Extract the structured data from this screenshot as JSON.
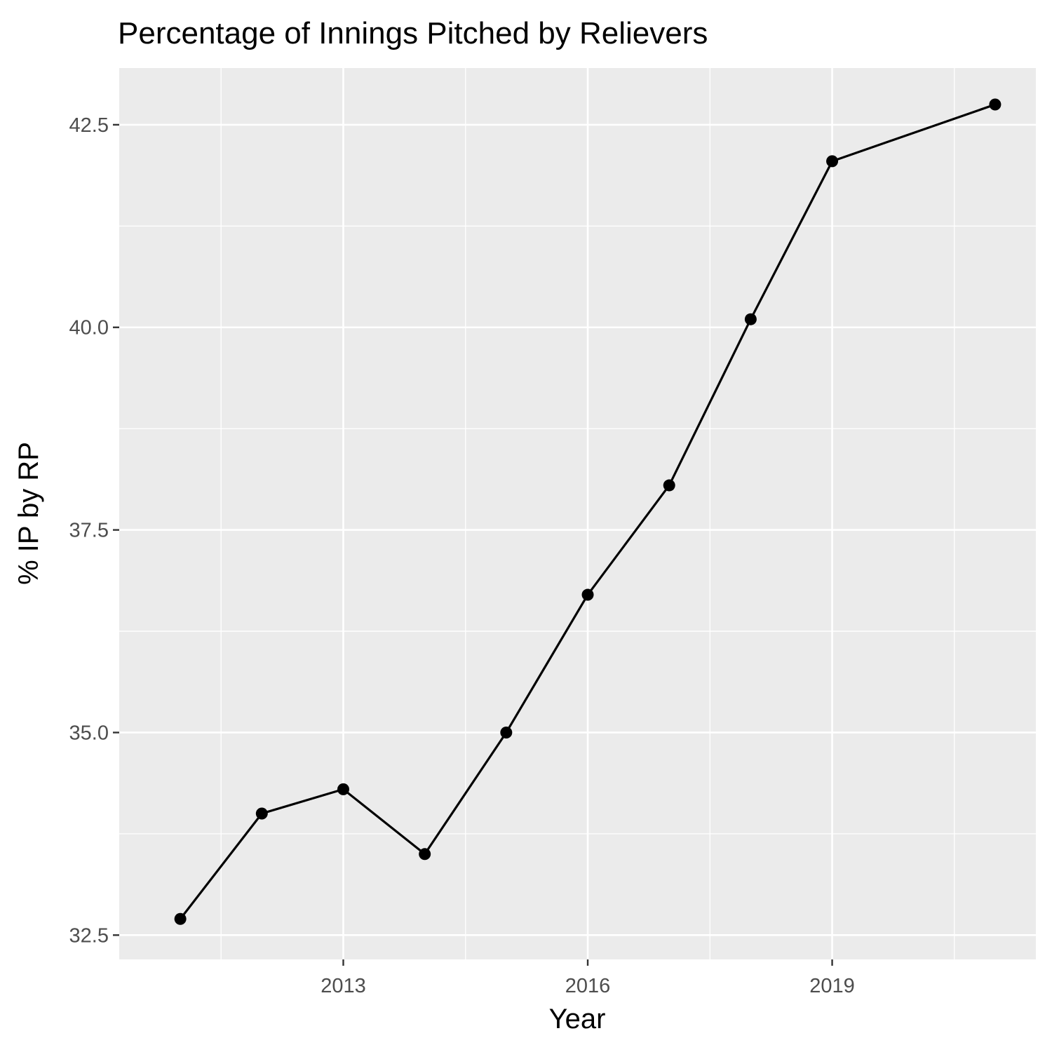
{
  "chart_data": {
    "type": "line",
    "title": "Percentage of Innings Pitched by Relievers",
    "xlabel": "Year",
    "ylabel": "% IP by RP",
    "x": [
      2011,
      2012,
      2013,
      2014,
      2015,
      2016,
      2017,
      2018,
      2019,
      2021
    ],
    "series": [
      {
        "values": [
          32.7,
          34.0,
          34.3,
          33.5,
          35.0,
          36.7,
          38.05,
          40.1,
          42.05,
          42.75
        ]
      }
    ],
    "xlim": [
      2010.25,
      2021.5
    ],
    "ylim": [
      32.2,
      43.2
    ],
    "x_ticks": [
      2013,
      2016,
      2019
    ],
    "x_tick_labels": [
      "2013",
      "2016",
      "2019"
    ],
    "y_ticks": [
      32.5,
      35.0,
      37.5,
      40.0,
      42.5
    ],
    "y_tick_labels": [
      "32.5",
      "35.0",
      "37.5",
      "40.0",
      "42.5"
    ],
    "grid": true,
    "legend": "none",
    "colors": {
      "panel_background": "#ebebeb",
      "grid": "#ffffff",
      "line": "#000000",
      "point": "#000000",
      "tick_mark": "#333333"
    }
  }
}
